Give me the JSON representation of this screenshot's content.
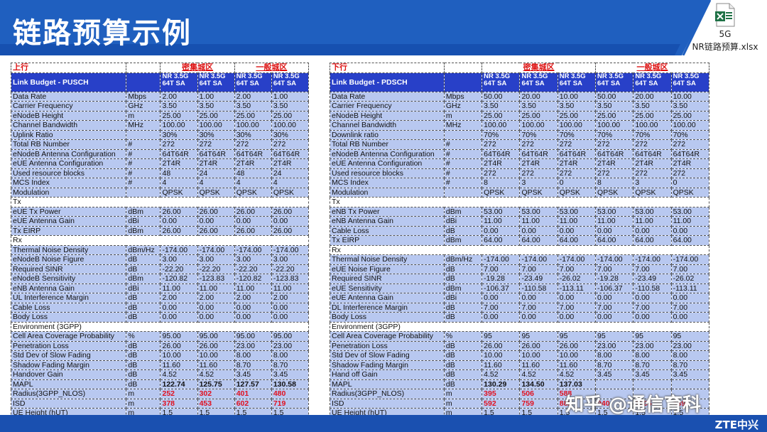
{
  "slide": {
    "title": "链路预算示例"
  },
  "attachment": {
    "line1": "5G",
    "line2": "NR链路预算.xlsx",
    "icon": "excel-file-icon",
    "color": "#1e7145"
  },
  "colors": {
    "header": "#1f5fbf",
    "table_header": "#2840c8",
    "cell_fill": "#b8c8f0",
    "red": "#e0101f"
  },
  "watermark": "知乎 @通信育科",
  "logo": "ZTE中兴",
  "uplink": {
    "direction": "上行",
    "groups": [
      "密集城区",
      "一般城区"
    ],
    "title": "Link Budget - PUSCH",
    "col_header": "NR 3.5G 64T SA",
    "rows": [
      {
        "name": "Data Rate",
        "unit": "Mbps",
        "v": [
          "2.00",
          "1.00",
          "2.00",
          "1.00"
        ]
      },
      {
        "name": "Carrier Frequency",
        "unit": "GHz",
        "v": [
          "3.50",
          "3.50",
          "3.50",
          "3.50"
        ]
      },
      {
        "name": "eNodeB Height",
        "unit": "m",
        "v": [
          "25.00",
          "25.00",
          "25.00",
          "25.00"
        ]
      },
      {
        "name": "Channel Bandwidth",
        "unit": "MHz",
        "v": [
          "100.00",
          "100.00",
          "100.00",
          "100.00"
        ]
      },
      {
        "name": "Uplink Ratio",
        "unit": "",
        "v": [
          "30%",
          "30%",
          "30%",
          "30%"
        ]
      },
      {
        "name": "Total RB Number",
        "unit": "#",
        "v": [
          "272",
          "272",
          "272",
          "272"
        ]
      },
      {
        "name": "eNodeB Antenna Configuration",
        "unit": "#",
        "v": [
          "64T64R",
          "64T64R",
          "64T64R",
          "64T64R"
        ]
      },
      {
        "name": "eUE Antenna Configuration",
        "unit": "#",
        "v": [
          "2T4R",
          "2T4R",
          "2T4R",
          "2T4R"
        ]
      },
      {
        "name": "Used resource blocks",
        "unit": "#",
        "v": [
          "48",
          "24",
          "48",
          "24"
        ]
      },
      {
        "name": "MCS Index",
        "unit": "#",
        "v": [
          "4",
          "4",
          "4",
          "4"
        ]
      },
      {
        "name": "Modulation",
        "unit": "",
        "v": [
          "QPSK",
          "QPSK",
          "QPSK",
          "QPSK"
        ]
      },
      {
        "section": "Tx"
      },
      {
        "name": "eUE Tx Power",
        "unit": "dBm",
        "v": [
          "26.00",
          "26.00",
          "26.00",
          "26.00"
        ]
      },
      {
        "name": "eUE Antenna Gain",
        "unit": "dBi",
        "v": [
          "0.00",
          "0.00",
          "0.00",
          "0.00"
        ]
      },
      {
        "name": "Tx EIRP",
        "unit": "dBm",
        "v": [
          "26.00",
          "26.00",
          "26.00",
          "26.00"
        ]
      },
      {
        "section": "Rx"
      },
      {
        "name": "Thermal Noise Density",
        "unit": "dBm/Hz",
        "v": [
          "-174.00",
          "-174.00",
          "-174.00",
          "-174.00"
        ]
      },
      {
        "name": "eNodeB Noise Figure",
        "unit": "dB",
        "v": [
          "3.00",
          "3.00",
          "3.00",
          "3.00"
        ]
      },
      {
        "name": "Required SINR",
        "unit": "dB",
        "v": [
          "-22.20",
          "-22.20",
          "-22.20",
          "-22.20"
        ]
      },
      {
        "name": "eNodeB Sensitivity",
        "unit": "dBm",
        "v": [
          "-120.82",
          "-123.83",
          "-120.82",
          "-123.83"
        ]
      },
      {
        "name": "eNB Antenna Gain",
        "unit": "dBi",
        "v": [
          "11.00",
          "11.00",
          "11.00",
          "11.00"
        ]
      },
      {
        "name": "UL Interference Margin",
        "unit": "dB",
        "v": [
          "2.00",
          "2.00",
          "2.00",
          "2.00"
        ]
      },
      {
        "name": "Cable Loss",
        "unit": "dB",
        "v": [
          "0.00",
          "0.00",
          "0.00",
          "0.00"
        ]
      },
      {
        "name": "Body Loss",
        "unit": "dB",
        "v": [
          "0.00",
          "0.00",
          "0.00",
          "0.00"
        ]
      },
      {
        "section": "Environment (3GPP)"
      },
      {
        "name": "Cell Area Coverage Probability",
        "unit": "%",
        "v": [
          "95.00",
          "95.00",
          "95.00",
          "95.00"
        ]
      },
      {
        "name": "Penetration Loss",
        "unit": "dB",
        "v": [
          "26.00",
          "26.00",
          "23.00",
          "23.00"
        ]
      },
      {
        "name": "Std Dev of Slow Fading",
        "unit": "dB",
        "v": [
          "10.00",
          "10.00",
          "8.00",
          "8.00"
        ]
      },
      {
        "name": "Shadow Fading Margin",
        "unit": "dB",
        "v": [
          "11.60",
          "11.60",
          "8.70",
          "8.70"
        ]
      },
      {
        "name": "Handover Gain",
        "unit": "dB",
        "v": [
          "4.52",
          "4.52",
          "3.45",
          "3.45"
        ]
      },
      {
        "name": "MAPL",
        "unit": "dB",
        "v": [
          "122.74",
          "125.75",
          "127.57",
          "130.58"
        ],
        "style": "bold"
      },
      {
        "name": "Radius(3GPP_NLOS)",
        "unit": "m",
        "v": [
          "252",
          "302",
          "401",
          "480"
        ],
        "style": "red"
      },
      {
        "name": "ISD",
        "unit": "m",
        "v": [
          "378",
          "453",
          "602",
          "719"
        ],
        "style": "red"
      },
      {
        "name": "UE Height (hUT)",
        "unit": "m",
        "v": [
          "1.5",
          "1.5",
          "1.5",
          "1.5"
        ]
      }
    ]
  },
  "downlink": {
    "direction": "下行",
    "groups": [
      "密集城区",
      "一般城区"
    ],
    "title": "Link Budget - PDSCH",
    "col_header": "NR 3.5G 64T SA",
    "rows": [
      {
        "name": "Data Rate",
        "unit": "Mbps",
        "v": [
          "50.00",
          "20.00",
          "10.00",
          "50.00",
          "20.00",
          "10.00"
        ]
      },
      {
        "name": "Carrier Frequency",
        "unit": "GHz",
        "v": [
          "3.50",
          "3.50",
          "3.50",
          "3.50",
          "3.50",
          "3.50"
        ]
      },
      {
        "name": "eNodeB Height",
        "unit": "m",
        "v": [
          "25.00",
          "25.00",
          "25.00",
          "25.00",
          "25.00",
          "25.00"
        ]
      },
      {
        "name": "Channel Bandwidth",
        "unit": "MHz",
        "v": [
          "100.00",
          "100.00",
          "100.00",
          "100.00",
          "100.00",
          "100.00"
        ]
      },
      {
        "name": "Downlink ratio",
        "unit": "",
        "v": [
          "70%",
          "70%",
          "70%",
          "70%",
          "70%",
          "70%"
        ]
      },
      {
        "name": "Total RB Number",
        "unit": "#",
        "v": [
          "272",
          "272",
          "272",
          "272",
          "272",
          "272"
        ]
      },
      {
        "name": "eNodeB Antenna Configuration",
        "unit": "#",
        "v": [
          "64T64R",
          "64T64R",
          "64T64R",
          "64T64R",
          "64T64R",
          "64T64R"
        ]
      },
      {
        "name": "eUE Antenna Configuration",
        "unit": "#",
        "v": [
          "2T4R",
          "2T4R",
          "2T4R",
          "2T4R",
          "2T4R",
          "2T4R"
        ]
      },
      {
        "name": "Used resource blocks",
        "unit": "#",
        "v": [
          "272",
          "272",
          "272",
          "272",
          "272",
          "272"
        ]
      },
      {
        "name": "MCS Index",
        "unit": "#",
        "v": [
          "8",
          "3",
          "0",
          "8",
          "3",
          "0"
        ]
      },
      {
        "name": "Modulation",
        "unit": "",
        "v": [
          "QPSK",
          "QPSK",
          "QPSK",
          "QPSK",
          "QPSK",
          "QPSK"
        ]
      },
      {
        "section": "Tx"
      },
      {
        "name": "eNB Tx Power",
        "unit": "dBm",
        "v": [
          "53.00",
          "53.00",
          "53.00",
          "53.00",
          "53.00",
          "53.00"
        ]
      },
      {
        "name": "eNB Antenna Gain",
        "unit": "dBi",
        "v": [
          "11.00",
          "11.00",
          "11.00",
          "11.00",
          "11.00",
          "11.00"
        ]
      },
      {
        "name": "Cable Loss",
        "unit": "dB",
        "v": [
          "0.00",
          "0.00",
          "0.00",
          "0.00",
          "0.00",
          "0.00"
        ]
      },
      {
        "name": "Tx EIRP",
        "unit": "dBm",
        "v": [
          "64.00",
          "64.00",
          "64.00",
          "64.00",
          "64.00",
          "64.00"
        ]
      },
      {
        "section": "Rx"
      },
      {
        "name": "Thermal Noise Density",
        "unit": "dBm/Hz",
        "v": [
          "-174.00",
          "-174.00",
          "-174.00",
          "-174.00",
          "-174.00",
          "-174.00"
        ]
      },
      {
        "name": "eUE Noise Figure",
        "unit": "dB",
        "v": [
          "7.00",
          "7.00",
          "7.00",
          "7.00",
          "7.00",
          "7.00"
        ]
      },
      {
        "name": "Required SINR",
        "unit": "dB",
        "v": [
          "-19.28",
          "-23.49",
          "-26.02",
          "-19.28",
          "-23.49",
          "-26.02"
        ]
      },
      {
        "name": "eUE Sensitivity",
        "unit": "dBm",
        "v": [
          "-106.37",
          "-110.58",
          "-113.11",
          "-106.37",
          "-110.58",
          "-113.11"
        ]
      },
      {
        "name": "eUE Antenna Gain",
        "unit": "dBi",
        "v": [
          "0.00",
          "0.00",
          "0.00",
          "0.00",
          "0.00",
          "0.00"
        ]
      },
      {
        "name": "DL Interference Margin",
        "unit": "dB",
        "v": [
          "7.00",
          "7.00",
          "7.00",
          "7.00",
          "7.00",
          "7.00"
        ]
      },
      {
        "name": "Body Loss",
        "unit": "dB",
        "v": [
          "0.00",
          "0.00",
          "0.00",
          "0.00",
          "0.00",
          "0.00"
        ]
      },
      {
        "section": "Environment (3GPP)"
      },
      {
        "name": "Cell Area Coverage Probability",
        "unit": "%",
        "v": [
          "95",
          "95",
          "95",
          "95",
          "95",
          "95"
        ]
      },
      {
        "name": "Penetration Loss",
        "unit": "dB",
        "v": [
          "26.00",
          "26.00",
          "26.00",
          "23.00",
          "23.00",
          "23.00"
        ]
      },
      {
        "name": "Std Dev of Slow Fading",
        "unit": "dB",
        "v": [
          "10.00",
          "10.00",
          "10.00",
          "8.00",
          "8.00",
          "8.00"
        ]
      },
      {
        "name": "Shadow Fading Margin",
        "unit": "dB",
        "v": [
          "11.60",
          "11.60",
          "11.60",
          "8.70",
          "8.70",
          "8.70"
        ]
      },
      {
        "name": "Hand off Gain",
        "unit": "dB",
        "v": [
          "4.52",
          "4.52",
          "4.52",
          "3.45",
          "3.45",
          "3.45"
        ]
      },
      {
        "name": "MAPL",
        "unit": "dB",
        "v": [
          "130.29",
          "134.50",
          "137.03",
          "",
          "",
          ""
        ],
        "style": "bold"
      },
      {
        "name": "Radius(3GPP_NLOS)",
        "unit": "m",
        "v": [
          "395",
          "506",
          "588",
          "",
          "",
          ""
        ],
        "style": "red"
      },
      {
        "name": "ISD",
        "unit": "m",
        "v": [
          "592",
          "759",
          "882",
          "940",
          "1205",
          "1399"
        ],
        "style": "red"
      },
      {
        "name": "UE Height (hUT)",
        "unit": "m",
        "v": [
          "1.5",
          "1.5",
          "1.5",
          "1.5",
          "1.5",
          "1.5"
        ]
      }
    ]
  }
}
